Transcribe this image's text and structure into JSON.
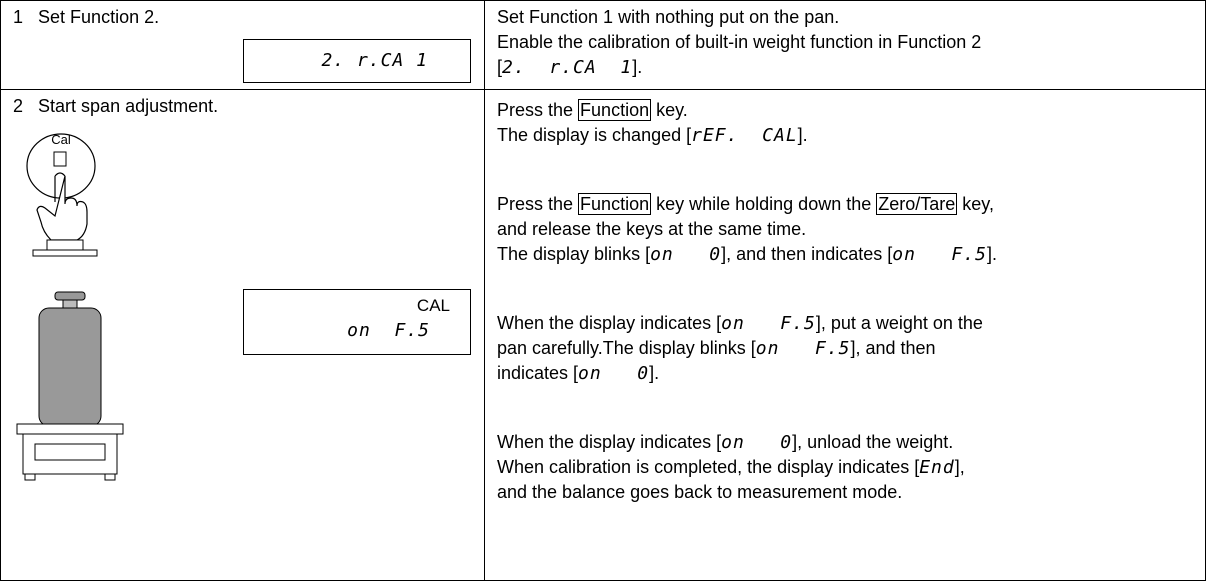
{
  "rows": [
    {
      "step": "1",
      "title": "Set Function 2.",
      "display": {
        "text": "2. r.CA 1"
      },
      "paragraphs": [
        [
          [
            {
              "text": "Set Function 1 with nothing put on the pan."
            }
          ],
          [
            {
              "text": "Enable the calibration of built-in weight function in Function 2"
            }
          ],
          [
            {
              "text": "["
            },
            {
              "seg": "2.  r.CA  1"
            },
            {
              "text": "]."
            }
          ]
        ]
      ]
    },
    {
      "step": "2",
      "title": "Start span adjustment.",
      "icon_label": "Cal",
      "display": {
        "mode": "CAL",
        "text": "on  F.5"
      },
      "paragraphs": [
        [
          [
            {
              "text": "Press the "
            },
            {
              "key": "Function"
            },
            {
              "text": " key."
            }
          ],
          [
            {
              "text": "The display is changed ["
            },
            {
              "seg": "rEF.  CAL"
            },
            {
              "text": "]."
            }
          ]
        ],
        [
          [
            {
              "text": "Press the "
            },
            {
              "key": "Function"
            },
            {
              "text": " key while holding down the "
            },
            {
              "key": "Zero/Tare"
            },
            {
              "text": " key,"
            }
          ],
          [
            {
              "text": "and release the keys at the same time."
            }
          ],
          [
            {
              "text": "The display blinks ["
            },
            {
              "seg": "on   0"
            },
            {
              "text": "], and then indicates ["
            },
            {
              "seg": "on   F.5"
            },
            {
              "text": "]."
            }
          ]
        ],
        [
          [
            {
              "text": "When the display indicates ["
            },
            {
              "seg": "on   F.5"
            },
            {
              "text": "], put a weight on the"
            }
          ],
          [
            {
              "text": "pan carefully.The display blinks ["
            },
            {
              "seg": "on   F.5"
            },
            {
              "text": "], and then"
            }
          ],
          [
            {
              "text": "indicates ["
            },
            {
              "seg": "on   0"
            },
            {
              "text": "]."
            }
          ]
        ],
        [
          [
            {
              "text": "When the display indicates ["
            },
            {
              "seg": "on   0"
            },
            {
              "text": "], unload the weight."
            }
          ],
          [
            {
              "text": "When calibration is completed, the display indicates ["
            },
            {
              "seg": "End"
            },
            {
              "text": "],"
            }
          ],
          [
            {
              "text": "and the balance goes back to measurement mode."
            }
          ]
        ]
      ]
    }
  ]
}
